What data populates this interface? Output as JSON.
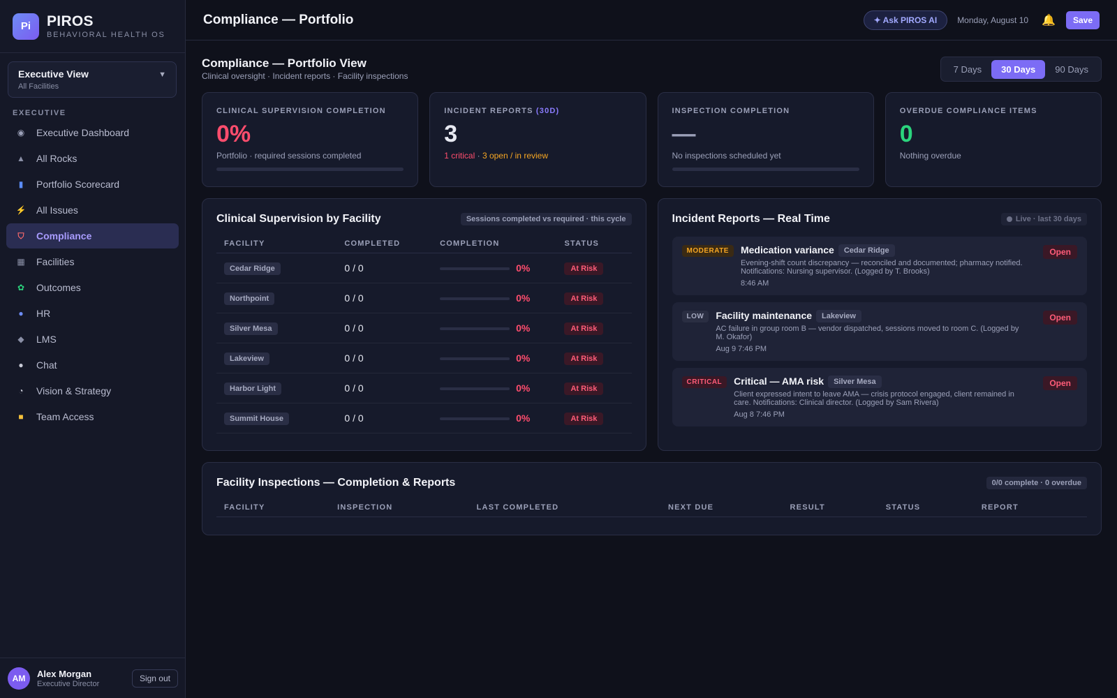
{
  "brand": {
    "logo": "Pi",
    "name": "PIROS",
    "subtitle": "BEHAVIORAL HEALTH OS"
  },
  "view_selector": {
    "title": "Executive View",
    "subtitle": "All Facilities"
  },
  "sidebar": {
    "section": "EXECUTIVE",
    "items": [
      {
        "label": "Executive Dashboard",
        "icon": "dashboard-icon",
        "glyph": "◉",
        "color": "#9ba0b8"
      },
      {
        "label": "All Rocks",
        "icon": "rock-icon",
        "glyph": "▲",
        "color": "#8a8fa6"
      },
      {
        "label": "Portfolio Scorecard",
        "icon": "bar-chart-icon",
        "glyph": "▮",
        "color": "#5b8cf6"
      },
      {
        "label": "All Issues",
        "icon": "lightning-icon",
        "glyph": "⚡",
        "color": "#f6c23c"
      },
      {
        "label": "Compliance",
        "icon": "shield-icon",
        "glyph": "⛉",
        "color": "#ff6b6b"
      },
      {
        "label": "Facilities",
        "icon": "building-icon",
        "glyph": "▦",
        "color": "#8a8fa6"
      },
      {
        "label": "Outcomes",
        "icon": "seedling-icon",
        "glyph": "✿",
        "color": "#2bd47d"
      },
      {
        "label": "HR",
        "icon": "people-icon",
        "glyph": "●",
        "color": "#6d8cf6"
      },
      {
        "label": "LMS",
        "icon": "graduation-cap-icon",
        "glyph": "◆",
        "color": "#8a8fa6"
      },
      {
        "label": "Chat",
        "icon": "chat-bubble-icon",
        "glyph": "●",
        "color": "#c8cad6"
      },
      {
        "label": "Vision & Strategy",
        "icon": "compass-icon",
        "glyph": "◔",
        "color": "#c8cad6"
      },
      {
        "label": "Team Access",
        "icon": "lock-icon",
        "glyph": "■",
        "color": "#f6c23c"
      }
    ],
    "active_index": 4
  },
  "user": {
    "initials": "AM",
    "name": "Alex Morgan",
    "role": "Executive Director",
    "signout": "Sign out"
  },
  "topbar": {
    "title": "Compliance — Portfolio",
    "ask_ai": "✦ Ask PIROS AI",
    "date": "Monday, August 10",
    "save": "Save"
  },
  "page": {
    "title": "Compliance — Portfolio View",
    "subtitle": "Clinical oversight · Incident reports · Facility inspections"
  },
  "range": {
    "options": [
      "7 Days",
      "30 Days",
      "90 Days"
    ],
    "selected": "30 Days"
  },
  "kpis": {
    "supervision": {
      "label": "CLINICAL SUPERVISION COMPLETION",
      "value": "0%",
      "note": "Portfolio · required sessions completed",
      "progress": 0
    },
    "incidents": {
      "label": "INCIDENT REPORTS",
      "label_accent": "(30D)",
      "value": "3",
      "critical": "1 critical",
      "sep": " · ",
      "open": "3 open / in review"
    },
    "inspection": {
      "label": "INSPECTION COMPLETION",
      "value": "—",
      "note": "No inspections scheduled yet",
      "progress": 0
    },
    "overdue": {
      "label": "OVERDUE COMPLIANCE ITEMS",
      "value": "0",
      "note": "Nothing overdue"
    }
  },
  "supervision_panel": {
    "title": "Clinical Supervision by Facility",
    "chip": "Sessions completed vs required · this cycle",
    "columns": [
      "FACILITY",
      "COMPLETED",
      "COMPLETION",
      "STATUS"
    ],
    "rows": [
      {
        "facility": "Cedar Ridge",
        "completed": "0 / 0",
        "pct": "0%",
        "progress": 0,
        "status": "At Risk"
      },
      {
        "facility": "Northpoint",
        "completed": "0 / 0",
        "pct": "0%",
        "progress": 0,
        "status": "At Risk"
      },
      {
        "facility": "Silver Mesa",
        "completed": "0 / 0",
        "pct": "0%",
        "progress": 0,
        "status": "At Risk"
      },
      {
        "facility": "Lakeview",
        "completed": "0 / 0",
        "pct": "0%",
        "progress": 0,
        "status": "At Risk"
      },
      {
        "facility": "Harbor Light",
        "completed": "0 / 0",
        "pct": "0%",
        "progress": 0,
        "status": "At Risk"
      },
      {
        "facility": "Summit House",
        "completed": "0 / 0",
        "pct": "0%",
        "progress": 0,
        "status": "At Risk"
      }
    ]
  },
  "incidents_panel": {
    "title": "Incident Reports — Real Time",
    "live": "Live · last 30 days",
    "items": [
      {
        "severity": "MODERATE",
        "sev_class": "m",
        "title": "Medication variance",
        "facility": "Cedar Ridge",
        "desc": "Evening-shift count discrepancy — reconciled and documented; pharmacy notified. Notifications: Nursing supervisor. (Logged by T. Brooks)",
        "time": "8:46 AM",
        "status": "Open"
      },
      {
        "severity": "LOW",
        "sev_class": "l",
        "title": "Facility maintenance",
        "facility": "Lakeview",
        "desc": "AC failure in group room B — vendor dispatched, sessions moved to room C. (Logged by M. Okafor)",
        "time": "Aug 9 7:46 PM",
        "status": "Open"
      },
      {
        "severity": "CRITICAL",
        "sev_class": "c",
        "title": "Critical — AMA risk",
        "facility": "Silver Mesa",
        "desc": "Client expressed intent to leave AMA — crisis protocol engaged, client remained in care. Notifications: Clinical director. (Logged by Sam Rivera)",
        "time": "Aug 8 7:46 PM",
        "status": "Open"
      }
    ]
  },
  "inspections_panel": {
    "title": "Facility Inspections — Completion & Reports",
    "chip": "0/0 complete · 0 overdue",
    "columns": [
      "FACILITY",
      "INSPECTION",
      "LAST COMPLETED",
      "NEXT DUE",
      "RESULT",
      "STATUS",
      "REPORT"
    ]
  }
}
